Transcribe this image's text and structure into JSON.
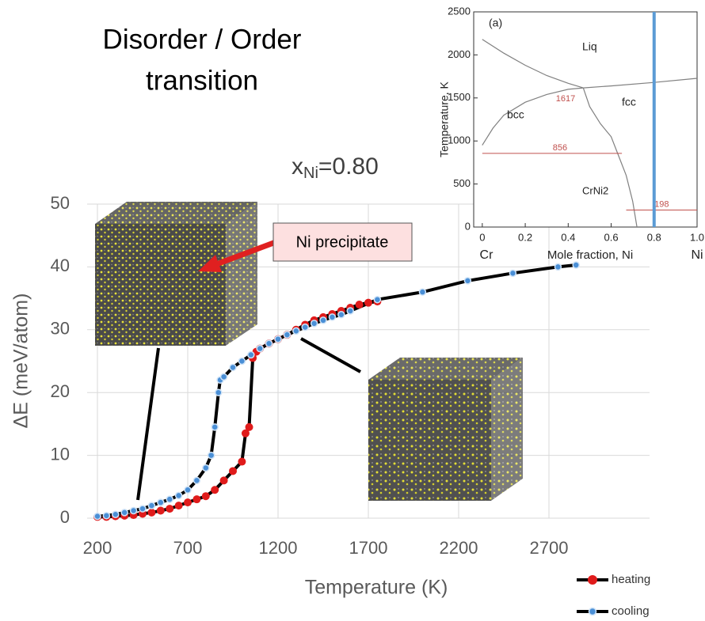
{
  "chart_data": [
    {
      "type": "line",
      "title_lines": [
        "Disorder / Order",
        "transition"
      ],
      "subtitle": {
        "base": "x",
        "sub": "Ni",
        "rest": "=0.80"
      },
      "callout": "Ni precipitate",
      "x_label": "Temperature (K)",
      "y_label": "ΔE  (meV/atom)",
      "xlim": [
        143,
        3257
      ],
      "xticks": [
        200,
        700,
        1200,
        1700,
        2200,
        2700
      ],
      "ylim": [
        0,
        50
      ],
      "yticks": [
        0,
        10,
        20,
        30,
        40,
        50
      ],
      "grid": true,
      "legend": "bottom-right",
      "markers": true,
      "line_color": "#000000",
      "series": [
        {
          "name": "heating",
          "color": "#e01b1b",
          "x": [
            200,
            250,
            300,
            350,
            400,
            450,
            500,
            550,
            600,
            650,
            700,
            750,
            800,
            850,
            900,
            950,
            1000,
            1020,
            1040,
            1060,
            1080,
            1100,
            1150,
            1200,
            1250,
            1300,
            1350,
            1400,
            1450,
            1500,
            1550,
            1600,
            1650,
            1700,
            1750
          ],
          "values": [
            0.2,
            0.2,
            0.3,
            0.4,
            0.5,
            0.7,
            0.9,
            1.2,
            1.5,
            2,
            2.5,
            3,
            3.5,
            4.5,
            6,
            7.5,
            9,
            13.5,
            14.5,
            25.5,
            26.5,
            27,
            27.8,
            28.5,
            29.2,
            30,
            30.8,
            31.5,
            32,
            32.5,
            33,
            33.5,
            34,
            34.3,
            34.5
          ]
        },
        {
          "name": "cooling",
          "color": "#4a8fd6",
          "x": [
            200,
            250,
            300,
            350,
            400,
            450,
            500,
            550,
            600,
            650,
            700,
            750,
            800,
            830,
            850,
            870,
            880,
            900,
            950,
            1000,
            1050,
            1100,
            1150,
            1200,
            1250,
            1300,
            1350,
            1400,
            1450,
            1500,
            1550,
            1600,
            1750,
            2000,
            2250,
            2500,
            2750,
            2850
          ],
          "values": [
            0.3,
            0.4,
            0.6,
            0.9,
            1.2,
            1.5,
            2,
            2.5,
            3,
            3.6,
            4.5,
            6,
            8,
            10,
            14.5,
            20,
            22,
            22.5,
            24,
            25,
            26,
            27,
            27.8,
            28.5,
            29.2,
            29.8,
            30.4,
            31,
            31.5,
            32,
            32.4,
            33,
            34.8,
            36,
            37.8,
            39,
            40,
            40.3
          ]
        }
      ]
    },
    {
      "type": "line",
      "x_label": "Mole fraction, Ni",
      "y_label": "Temperature, K",
      "x_end_labels": [
        "Cr",
        "Ni"
      ],
      "region_labels": [
        "(a)",
        "Liq",
        "bcc",
        "fcc",
        "CrNi2"
      ],
      "xlim": [
        -0.04,
        1.0
      ],
      "xticks": [
        0,
        0.2,
        0.4,
        0.6,
        0.8,
        {
          "value": 1,
          "label": "1.0"
        }
      ],
      "ylim": [
        0,
        2500
      ],
      "yticks": [
        0,
        500,
        1000,
        1500,
        2000,
        2500
      ],
      "grid": false,
      "markers": false,
      "series": [
        {
          "color": "#808080",
          "x": [
            0,
            0.1,
            0.2,
            0.3,
            0.4,
            0.47
          ],
          "values": [
            2180,
            2020,
            1880,
            1760,
            1670,
            1617
          ]
        },
        {
          "color": "#808080",
          "x": [
            0.47,
            0.6,
            0.8,
            1.0
          ],
          "values": [
            1617,
            1640,
            1680,
            1728
          ]
        },
        {
          "color": "#808080",
          "x": [
            0,
            0.05,
            0.1,
            0.2,
            0.3,
            0.4,
            0.47
          ],
          "values": [
            950,
            1150,
            1300,
            1450,
            1540,
            1600,
            1617
          ]
        },
        {
          "color": "#808080",
          "x": [
            0.47,
            0.5,
            0.55,
            0.6,
            0.63,
            0.67,
            0.7,
            0.72
          ],
          "values": [
            1617,
            1400,
            1200,
            1050,
            856,
            600,
            300,
            0
          ]
        }
      ],
      "hlines": [
        {
          "value": 856,
          "x": [
            0,
            0.65
          ],
          "color": "#c0504d"
        },
        {
          "value": 198,
          "x": [
            0.67,
            1.0
          ],
          "color": "#c0504d"
        }
      ],
      "point": {
        "x": 0.47,
        "value": 1617,
        "color": "#c0504d"
      },
      "vline": {
        "value": 0.8,
        "color": "#5b9bd5"
      }
    }
  ]
}
